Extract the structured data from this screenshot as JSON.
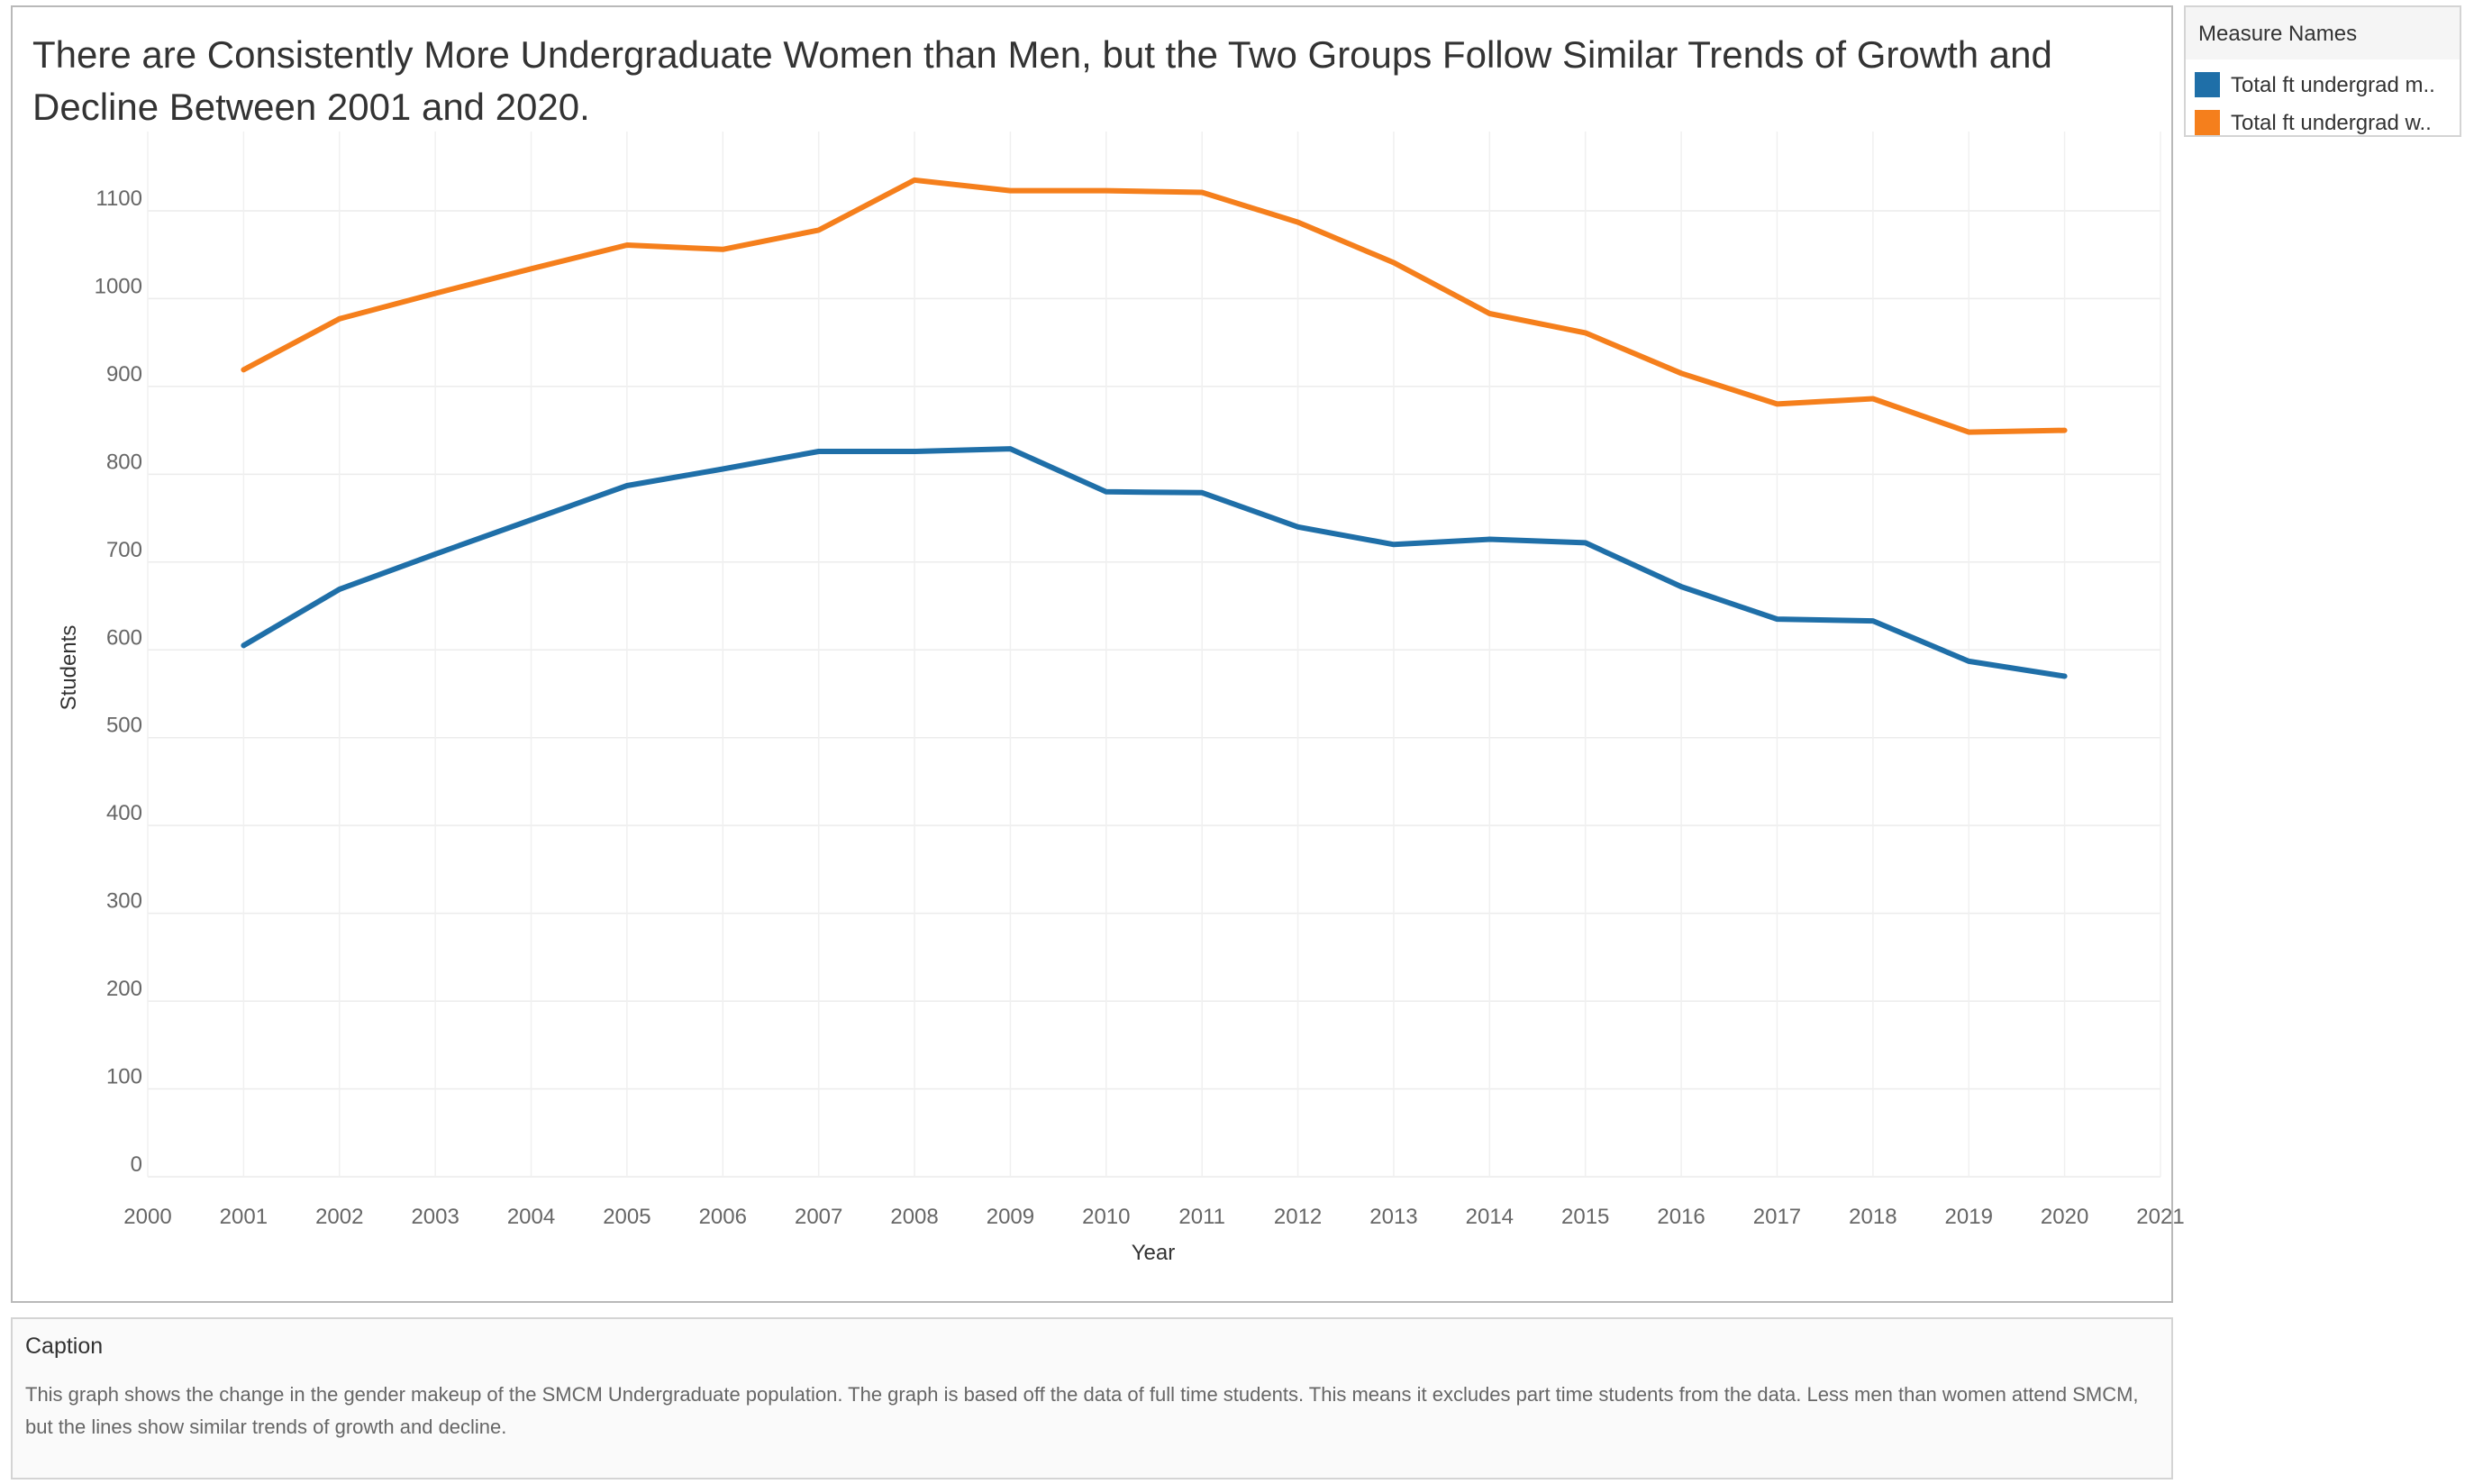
{
  "chart_data": {
    "type": "line",
    "title": "There are Consistently More Undergraduate Women than Men, but the Two Groups Follow Similar Trends of Growth and Decline Between 2001 and 2020.",
    "xlabel": "Year",
    "ylabel": "Students",
    "x": [
      2001,
      2002,
      2003,
      2004,
      2005,
      2006,
      2007,
      2008,
      2009,
      2010,
      2011,
      2012,
      2013,
      2014,
      2015,
      2016,
      2017,
      2018,
      2019,
      2020
    ],
    "x_ticks": [
      "2000",
      "2001",
      "2002",
      "2003",
      "2004",
      "2005",
      "2006",
      "2007",
      "2008",
      "2009",
      "2010",
      "2011",
      "2012",
      "2013",
      "2014",
      "2015",
      "2016",
      "2017",
      "2018",
      "2019",
      "2020",
      "2021"
    ],
    "y_ticks": [
      "0",
      "100",
      "200",
      "300",
      "400",
      "500",
      "600",
      "700",
      "800",
      "900",
      "1000",
      "1100"
    ],
    "xlim": [
      2000,
      2021
    ],
    "ylim": [
      0,
      1180
    ],
    "grid": true,
    "legend_position": "right",
    "series": [
      {
        "name": "Total ft undergrad m..",
        "color": "#1f6fa8",
        "values": [
          605,
          669,
          709,
          748,
          787,
          806,
          826,
          826,
          829,
          780,
          779,
          740,
          720,
          726,
          722,
          672,
          635,
          633,
          587,
          570
        ]
      },
      {
        "name": "Total ft undergrad w..",
        "color": "#f57f1c",
        "values": [
          919,
          977,
          1006,
          1034,
          1061,
          1056,
          1078,
          1135,
          1123,
          1123,
          1121,
          1087,
          1041,
          983,
          961,
          915,
          880,
          886,
          848,
          850
        ]
      }
    ]
  },
  "legend": {
    "title": "Measure Names"
  },
  "caption": {
    "title": "Caption",
    "text": "This graph shows the change in the gender makeup of the SMCM Undergraduate population. The graph is based off the data of full time students. This means it excludes part time students from the data. Less men than women attend SMCM, but the lines show similar trends of growth and decline."
  }
}
